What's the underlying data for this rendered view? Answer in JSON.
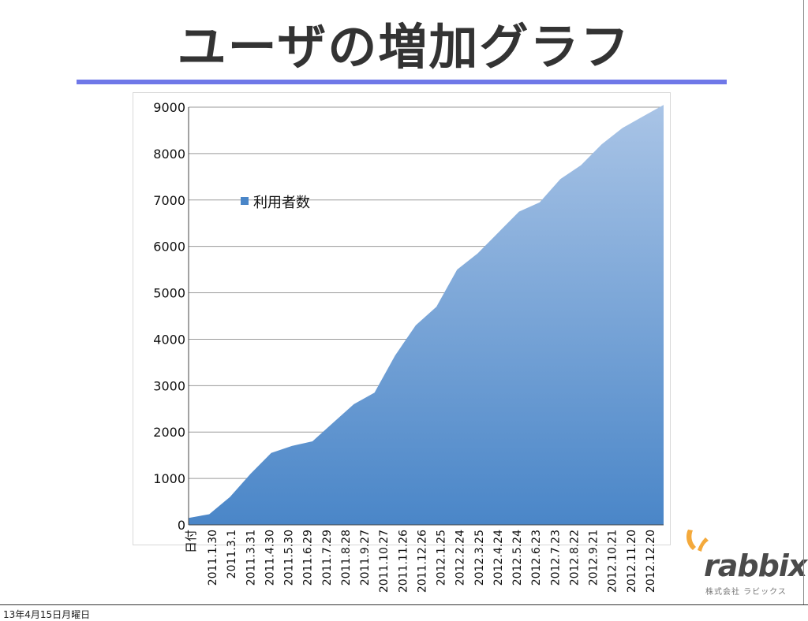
{
  "slide": {
    "title": "ユーザの増加グラフ",
    "footer_date": "13年4月15日月曜日"
  },
  "logo": {
    "name": "rabbix",
    "subtitle": "株式会社 ラビックス",
    "accent_color": "#f4a93b"
  },
  "chart_data": {
    "type": "area",
    "title": "",
    "xlabel": "日付",
    "ylabel": "",
    "ylim": [
      0,
      9000
    ],
    "yticks": [
      0,
      1000,
      2000,
      3000,
      4000,
      5000,
      6000,
      7000,
      8000,
      9000
    ],
    "grid": true,
    "legend_position": "top-left",
    "categories": [
      "2011.1.30",
      "2011.3.1",
      "2011.3.31",
      "2011.4.30",
      "2011.5.30",
      "2011.6.29",
      "2011.7.29",
      "2011.8.28",
      "2011.9.27",
      "2011.10.27",
      "2011.11.26",
      "2011.12.26",
      "2012.1.25",
      "2012.2.24",
      "2012.3.25",
      "2012.4.24",
      "2012.5.24",
      "2012.6.23",
      "2012.7.23",
      "2012.8.22",
      "2012.9.21",
      "2012.10.21",
      "2012.11.20",
      "2012.12.20"
    ],
    "series": [
      {
        "name": "利用者数",
        "color_top": "#a9c4e6",
        "color_bottom": "#4a86c8",
        "values": [
          150,
          230,
          600,
          1100,
          1550,
          1700,
          1800,
          2200,
          2600,
          2850,
          3650,
          4300,
          4700,
          5500,
          5850,
          6300,
          6750,
          6950,
          7450,
          7750,
          8200,
          8550,
          8800,
          9050
        ]
      }
    ]
  }
}
